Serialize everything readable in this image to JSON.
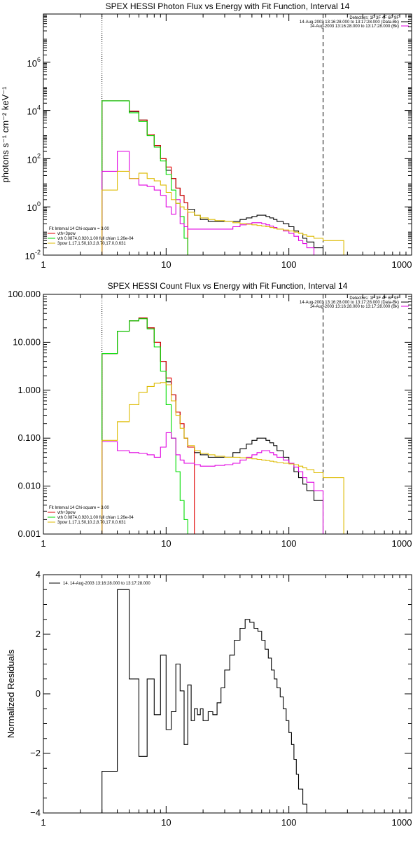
{
  "chart_data": [
    {
      "type": "line",
      "title": "SPEX HESSI Photon Flux vs Energy with Fit Function, Interval 14",
      "ylabel": "photons s⁻¹ cm⁻² keV⁻¹",
      "xscale": "log",
      "yscale": "log",
      "xlim": [
        1,
        1000
      ],
      "ylim": [
        0.01,
        100000000
      ],
      "xticks": [
        "1",
        "10",
        "100",
        "1000"
      ],
      "yticks": [
        {
          "base": "10",
          "exp": "-2",
          "v": 0.01
        },
        {
          "base": "10",
          "exp": "0",
          "v": 1
        },
        {
          "base": "10",
          "exp": "2",
          "v": 100
        },
        {
          "base": "10",
          "exp": "4",
          "v": 10000
        },
        {
          "base": "10",
          "exp": "6",
          "v": 1000000
        }
      ],
      "vlines": [
        {
          "x": 3,
          "style": "dotted"
        },
        {
          "x": 190,
          "style": "dashed"
        }
      ],
      "legend_right": [
        "Detectors: 1F 3F 4F 6F 9F",
        "14-Aug-2003 13:16:28.000 to 13:17:28.000 (Data-Bk)",
        "14-Aug-2003 13:16:28.000 to 13:17:28.000 (Bk)"
      ],
      "legend_left": [
        "Fit Interval 14   Chi-square = 3.00",
        "vth+3pow",
        "vth 0.0874,0.920,1.00  full chian 1.26e-04",
        "3pow 1.17,1.50,10.2,8.70,17.0,0.631"
      ],
      "series": [
        {
          "color": "#000000",
          "edges": [
            3,
            4,
            5,
            6,
            7,
            8,
            9,
            10,
            11,
            12,
            13,
            14,
            15,
            17,
            19,
            22,
            25,
            30,
            35,
            40,
            45,
            50,
            55,
            60,
            65,
            70,
            75,
            80,
            90,
            100,
            110,
            120,
            130,
            140,
            160,
            190
          ],
          "values": [
            25000,
            25000,
            9000,
            4000,
            1000,
            350,
            100,
            33,
            15,
            6,
            3,
            1.5,
            0.8,
            0.45,
            0.3,
            0.25,
            0.25,
            0.25,
            0.25,
            0.3,
            0.35,
            0.4,
            0.45,
            0.45,
            0.4,
            0.35,
            0.3,
            0.25,
            0.2,
            0.15,
            0.1,
            0.08,
            0.05,
            0.035,
            0.02
          ]
        },
        {
          "color": "#e00000",
          "edges": [
            3,
            4,
            5,
            6,
            7,
            8,
            9,
            10,
            11,
            12,
            13,
            14,
            15
          ],
          "values": [
            25000,
            25000,
            9500,
            4000,
            1000,
            350,
            100,
            45,
            15,
            6,
            3,
            1.5
          ]
        },
        {
          "color": "#00dd00",
          "edges": [
            3,
            4,
            5,
            6,
            7,
            8,
            9,
            10,
            11,
            12,
            13,
            14,
            15,
            16
          ],
          "values": [
            25000,
            25000,
            8000,
            3500,
            900,
            300,
            80,
            22,
            5,
            1.4,
            0.4,
            0.05,
            0.01
          ]
        },
        {
          "color": "#e000e0",
          "edges": [
            3,
            4,
            5,
            6,
            7,
            8,
            9,
            10,
            11,
            12,
            13,
            14,
            15,
            17,
            19,
            22,
            25,
            30,
            35,
            40,
            45,
            50,
            55,
            60,
            65,
            70,
            75,
            80,
            90,
            100,
            110,
            120,
            130,
            140,
            160,
            190
          ],
          "values": [
            30,
            200,
            15,
            8,
            7,
            5,
            3,
            1,
            0.5,
            2,
            0.2,
            0.15,
            0.12,
            0.12,
            0.12,
            0.12,
            0.12,
            0.12,
            0.15,
            0.18,
            0.2,
            0.22,
            0.22,
            0.2,
            0.18,
            0.16,
            0.14,
            0.12,
            0.1,
            0.08,
            0.06,
            0.04,
            0.03,
            0.02,
            0.01
          ]
        },
        {
          "color": "#ddbb00",
          "edges": [
            3,
            4,
            5,
            6,
            7,
            8,
            9,
            10,
            11,
            12,
            13,
            14,
            15,
            17,
            19,
            22,
            25,
            30,
            35,
            40,
            45,
            50,
            55,
            60,
            65,
            70,
            75,
            80,
            90,
            100,
            110,
            120,
            130,
            140,
            160,
            190,
            280
          ],
          "values": [
            5,
            30,
            15,
            25,
            15,
            12,
            8,
            4,
            2,
            1.4,
            1,
            0.8,
            0.6,
            0.45,
            0.35,
            0.3,
            0.27,
            0.25,
            0.22,
            0.2,
            0.19,
            0.18,
            0.17,
            0.16,
            0.15,
            0.14,
            0.13,
            0.12,
            0.11,
            0.1,
            0.09,
            0.08,
            0.07,
            0.06,
            0.05,
            0.04
          ]
        }
      ]
    },
    {
      "type": "line",
      "title": "SPEX HESSI Count Flux vs Energy with Fit Function, Interval 14",
      "xscale": "log",
      "yscale": "log",
      "xlim": [
        1,
        1000
      ],
      "ylim": [
        0.001,
        100
      ],
      "xticks": [
        "1",
        "10",
        "100",
        "1000"
      ],
      "yticks": [
        {
          "label": "0.001",
          "v": 0.001
        },
        {
          "label": "0.010",
          "v": 0.01
        },
        {
          "label": "0.100",
          "v": 0.1
        },
        {
          "label": "1.000",
          "v": 1
        },
        {
          "label": "10.000",
          "v": 10
        },
        {
          "label": "100.000",
          "v": 100
        }
      ],
      "vlines": [
        {
          "x": 3,
          "style": "dotted"
        },
        {
          "x": 190,
          "style": "dashed"
        }
      ],
      "legend_right": [
        "Detectors: 1F 3F 4F 6F 9F",
        "14-Aug-2003 13:16:28.000 to 13:17:28.000 (Data-Bk)",
        "14-Aug-2003 13:16:28.000 to 13:17:28.000 (Bk)"
      ],
      "legend_left": [
        "Fit Interval 14   Chi-square = 3.00",
        "vth+3pow",
        "vth 0.0874,0.920,1.00  full chian 1.26e-04",
        "3pow 1.17,1.50,10.2,8.70,17.0,0.631"
      ],
      "series": [
        {
          "color": "#000000",
          "edges": [
            3,
            4,
            5,
            6,
            7,
            8,
            9,
            10,
            11,
            12,
            13,
            14,
            15,
            17,
            19,
            22,
            25,
            30,
            35,
            40,
            45,
            50,
            55,
            60,
            65,
            70,
            75,
            80,
            90,
            100,
            110,
            120,
            130,
            140,
            160,
            190
          ],
          "values": [
            5.8,
            17,
            28,
            32,
            20,
            10,
            4,
            1.5,
            0.8,
            0.35,
            0.2,
            0.1,
            0.065,
            0.05,
            0.045,
            0.04,
            0.04,
            0.04,
            0.05,
            0.06,
            0.075,
            0.09,
            0.1,
            0.1,
            0.09,
            0.08,
            0.07,
            0.055,
            0.04,
            0.03,
            0.02,
            0.015,
            0.011,
            0.008,
            0.005
          ]
        },
        {
          "color": "#e00000",
          "edges": [
            3,
            4,
            5,
            6,
            7,
            8,
            9,
            10,
            11,
            12,
            13,
            14,
            15,
            17
          ],
          "values": [
            5.8,
            17,
            28,
            32,
            20,
            10,
            4,
            1.8,
            0.8,
            0.35,
            0.2,
            0.1,
            0.065
          ]
        },
        {
          "color": "#00dd00",
          "edges": [
            3,
            4,
            5,
            6,
            7,
            8,
            9,
            10,
            11,
            12,
            13,
            14,
            15,
            16
          ],
          "values": [
            5.8,
            17,
            28,
            31,
            19,
            8,
            2.5,
            0.5,
            0.1,
            0.02,
            0.005,
            0.002,
            0.001
          ]
        },
        {
          "color": "#e000e0",
          "edges": [
            3,
            4,
            5,
            6,
            7,
            8,
            9,
            10,
            11,
            12,
            13,
            14,
            15,
            17,
            19,
            22,
            25,
            30,
            35,
            40,
            45,
            50,
            55,
            60,
            65,
            70,
            75,
            80,
            90,
            100,
            110,
            120,
            130,
            140,
            160,
            190
          ],
          "values": [
            0.085,
            0.055,
            0.05,
            0.048,
            0.045,
            0.04,
            0.065,
            0.13,
            0.1,
            0.045,
            0.035,
            0.03,
            0.03,
            0.028,
            0.026,
            0.026,
            0.027,
            0.028,
            0.03,
            0.035,
            0.04,
            0.045,
            0.05,
            0.055,
            0.055,
            0.05,
            0.045,
            0.04,
            0.035,
            0.03,
            0.025,
            0.02,
            0.015,
            0.012,
            0.008
          ]
        },
        {
          "color": "#ddbb00",
          "edges": [
            3,
            4,
            5,
            6,
            7,
            8,
            9,
            10,
            11,
            12,
            13,
            14,
            15,
            17,
            19,
            22,
            25,
            30,
            35,
            40,
            45,
            50,
            55,
            60,
            65,
            70,
            75,
            80,
            90,
            100,
            110,
            120,
            130,
            140,
            160,
            190,
            280
          ],
          "values": [
            0.09,
            0.22,
            0.5,
            0.9,
            1.2,
            1.4,
            1.45,
            1.3,
            0.6,
            0.3,
            0.16,
            0.1,
            0.07,
            0.055,
            0.048,
            0.045,
            0.042,
            0.04,
            0.04,
            0.039,
            0.038,
            0.037,
            0.036,
            0.035,
            0.034,
            0.033,
            0.032,
            0.031,
            0.03,
            0.029,
            0.028,
            0.026,
            0.024,
            0.022,
            0.019,
            0.015
          ]
        }
      ]
    },
    {
      "type": "line",
      "title": "",
      "ylabel": "Normalized Residuals",
      "xscale": "log",
      "yscale": "linear",
      "xlim": [
        1,
        1000
      ],
      "ylim": [
        -4,
        4
      ],
      "xticks": [
        "1",
        "10",
        "100",
        "1000"
      ],
      "yticks": [
        {
          "label": "4",
          "v": 4
        },
        {
          "label": "2",
          "v": 2
        },
        {
          "label": "0",
          "v": 0
        },
        {
          "label": "−2",
          "v": -2
        },
        {
          "label": "−4",
          "v": -4
        }
      ],
      "legend_left": [
        "14. 14-Aug-2003 13:16:28.000 to 13:17:28.000"
      ],
      "series": [
        {
          "color": "#000000",
          "edges": [
            3,
            4,
            5,
            6,
            7,
            8,
            9,
            10,
            11,
            12,
            13,
            14,
            15,
            16,
            17,
            18,
            19,
            20,
            22,
            24,
            26,
            28,
            30,
            33,
            36,
            40,
            44,
            48,
            52,
            56,
            60,
            64,
            68,
            72,
            76,
            80,
            85,
            90,
            95,
            100,
            105,
            110,
            115,
            120,
            130,
            140,
            150,
            165,
            190
          ],
          "values": [
            -2.6,
            3.5,
            0.5,
            -2.1,
            0.5,
            -0.7,
            1.3,
            -1.2,
            -0.6,
            1.0,
            0.1,
            -1.7,
            0.3,
            -0.9,
            -0.5,
            -0.7,
            -0.5,
            -0.9,
            -0.6,
            -0.7,
            -0.3,
            0.2,
            0.8,
            1.3,
            1.8,
            2.2,
            2.5,
            2.4,
            2.2,
            2.1,
            1.8,
            1.5,
            1.2,
            0.8,
            0.5,
            0.2,
            -0.1,
            -0.5,
            -0.9,
            -1.3,
            -1.7,
            -2.2,
            -2.7,
            -3.2,
            -3.7,
            -4.0,
            -4.0,
            -4.0
          ]
        }
      ]
    }
  ]
}
